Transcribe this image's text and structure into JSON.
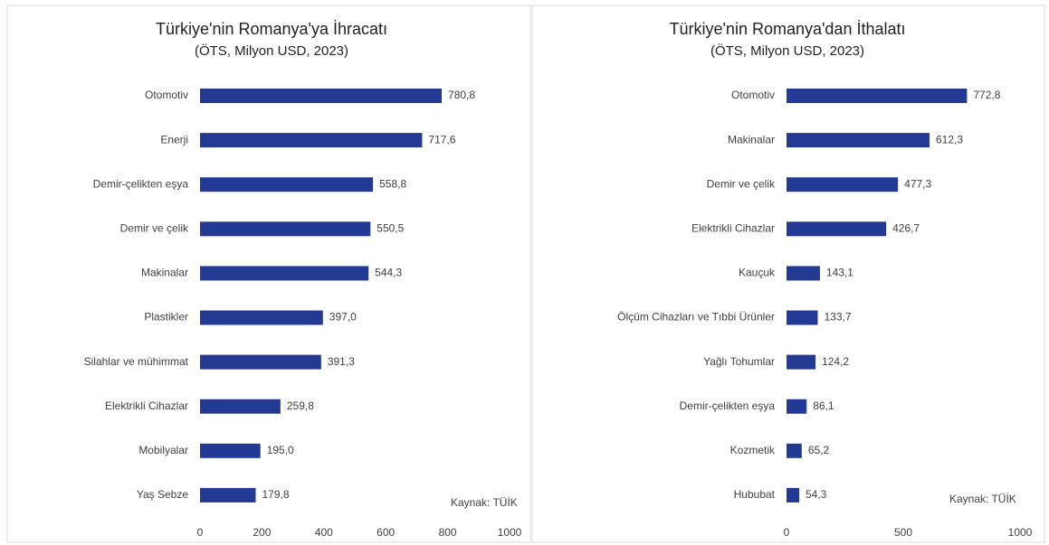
{
  "chart_data": [
    {
      "type": "bar",
      "orientation": "horizontal",
      "title": "Türkiye'nin Romanya'ya İhracatı",
      "subtitle": "(ÖTS, Milyon USD, 2023)",
      "categories": [
        "Otomotiv",
        "Enerji",
        "Demir-çelikten eşya",
        "Demir ve çelik",
        "Makinalar",
        "Plastikler",
        "Silahlar ve mühimmat",
        "Elektrikli Cihazlar",
        "Mobilyalar",
        "Yaş Sebze"
      ],
      "values": [
        780.8,
        717.6,
        558.8,
        550.5,
        544.3,
        397.0,
        391.3,
        259.8,
        195.0,
        179.8
      ],
      "value_labels": [
        "780,8",
        "717,6",
        "558,8",
        "550,5",
        "544,3",
        "397,0",
        "391,3",
        "259,8",
        "195,0",
        "179,8"
      ],
      "color": "#233a95",
      "xlim": [
        0,
        1000
      ],
      "xticks": [
        0,
        200,
        400,
        600,
        800,
        1000
      ],
      "annotation": "Kaynak: TÜİK"
    },
    {
      "type": "bar",
      "orientation": "horizontal",
      "title": "Türkiye'nin Romanya'dan İthalatı",
      "subtitle": "(ÖTS, Milyon USD, 2023)",
      "categories": [
        "Otomotiv",
        "Makinalar",
        "Demir ve çelik",
        "Elektrikli Cihazlar",
        "Kauçuk",
        "Ölçüm Cihazları ve Tıbbi Ürünler",
        "Yağlı Tohumlar",
        "Demir-çelikten eşya",
        "Kozmetik",
        "Hububat"
      ],
      "values": [
        772.8,
        612.3,
        477.3,
        426.7,
        143.1,
        133.7,
        124.2,
        86.1,
        65.2,
        54.3
      ],
      "value_labels": [
        "772,8",
        "612,3",
        "477,3",
        "426,7",
        "143,1",
        "133,7",
        "124,2",
        "86,1",
        "65,2",
        "54,3"
      ],
      "color": "#233a95",
      "xlim": [
        0,
        1000
      ],
      "xticks": [
        0,
        500,
        1000
      ],
      "annotation": "Kaynak: TÜİK"
    }
  ]
}
